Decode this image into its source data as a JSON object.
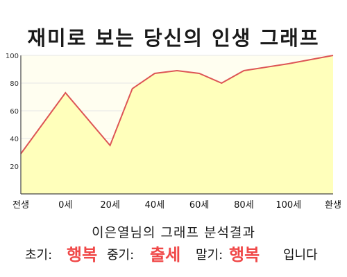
{
  "title": "재미로 보는 당신의 인생 그래프",
  "chart_data": {
    "type": "area",
    "title": "재미로 보는 당신의 인생 그래프",
    "x_tick_labels": [
      "전생",
      "0세",
      "20세",
      "40세",
      "60세",
      "80세",
      "100세",
      "환생"
    ],
    "y_ticks": [
      20,
      40,
      60,
      80,
      100
    ],
    "ylim": [
      0,
      100
    ],
    "points": [
      {
        "x_index": 0.0,
        "y": 29
      },
      {
        "x_index": 1.0,
        "y": 73
      },
      {
        "x_index": 2.0,
        "y": 35
      },
      {
        "x_index": 2.5,
        "y": 76
      },
      {
        "x_index": 3.0,
        "y": 87
      },
      {
        "x_index": 3.5,
        "y": 89
      },
      {
        "x_index": 4.0,
        "y": 87
      },
      {
        "x_index": 4.5,
        "y": 80
      },
      {
        "x_index": 5.0,
        "y": 89
      },
      {
        "x_index": 6.0,
        "y": 94
      },
      {
        "x_index": 7.0,
        "y": 100
      }
    ],
    "grid": true,
    "colors": {
      "line": "#dd5555",
      "fill": "#ffffbb",
      "background": "#fffef0",
      "grid": "#e6e6e6"
    }
  },
  "summary": "이은열님의 그래프 분석결과",
  "result": {
    "early_label": "초기:",
    "early_value": "행복",
    "mid_label": "중기:",
    "mid_value": "출세",
    "late_label": "말기:",
    "late_value": "행복",
    "ending": "입니다"
  }
}
